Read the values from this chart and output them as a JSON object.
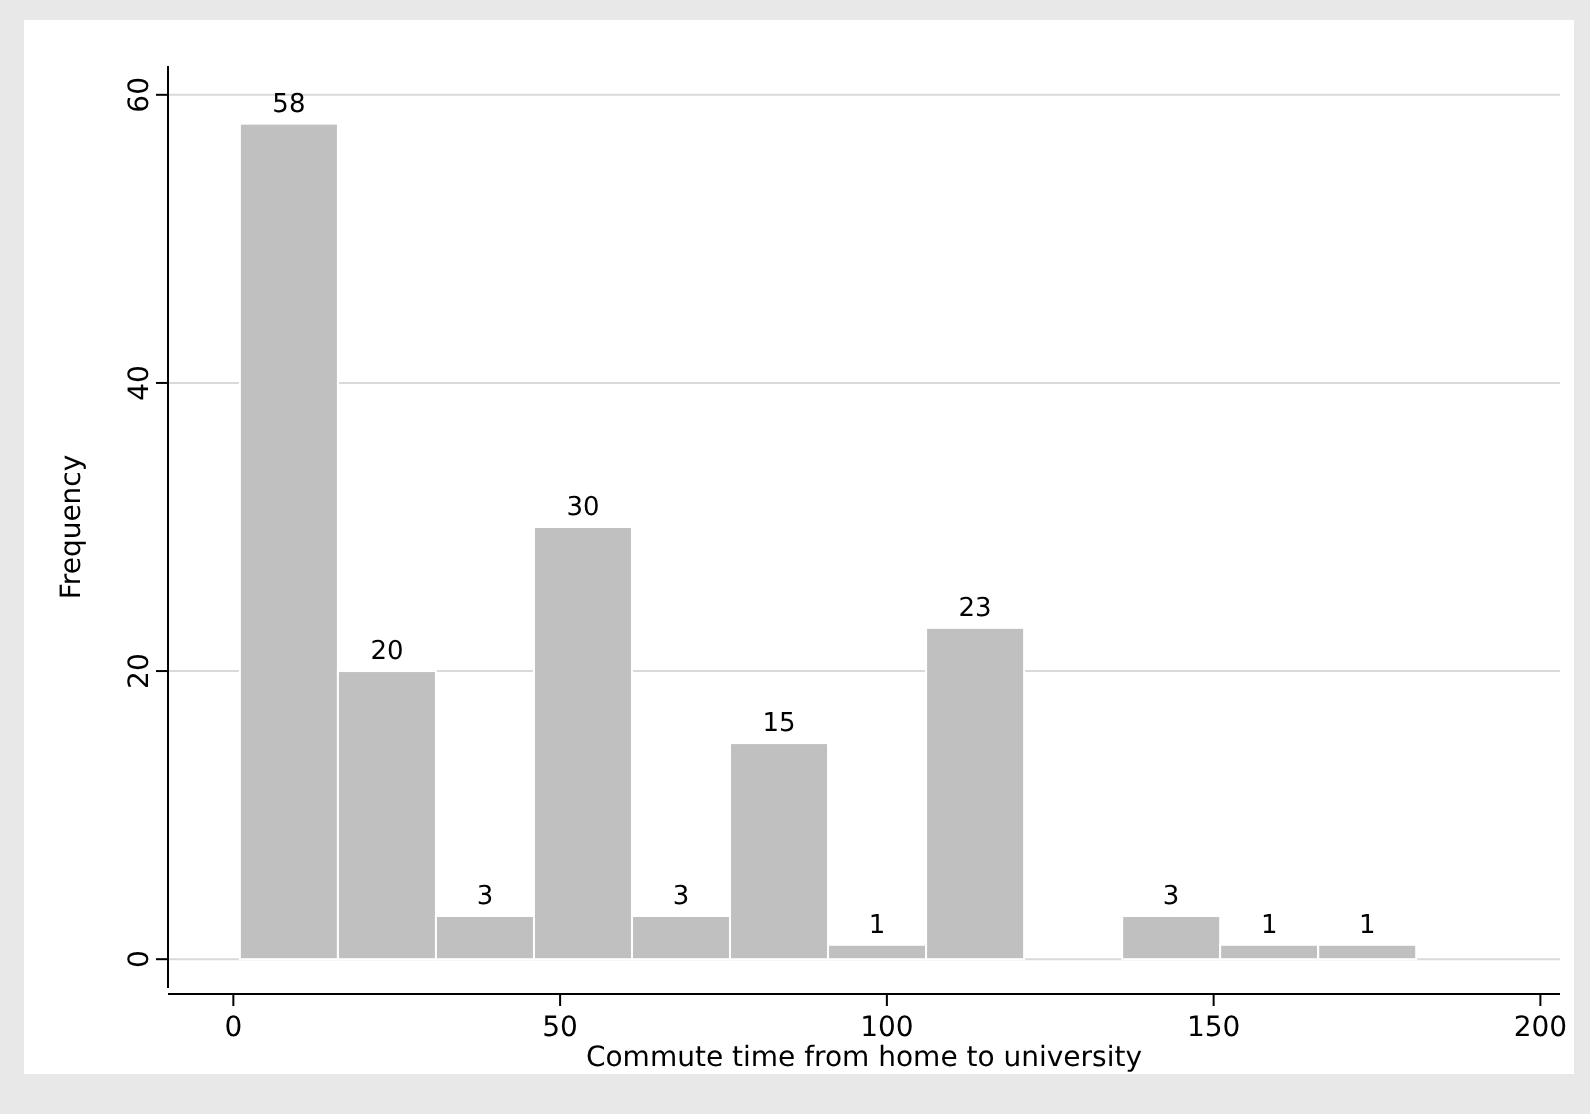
{
  "chart_data": {
    "type": "histogram",
    "xlabel": "Commute time from home to university",
    "ylabel": "Frequency",
    "bins": [
      1,
      16,
      31,
      46,
      61,
      76,
      91,
      106,
      121,
      136,
      151,
      166,
      181
    ],
    "values": [
      58,
      20,
      3,
      30,
      3,
      15,
      1,
      23,
      0,
      3,
      1,
      1
    ],
    "color": "#c0c0c0",
    "value_labels": [
      "58",
      "20",
      "3",
      "30",
      "3",
      "15",
      "1",
      "23",
      null,
      "3",
      "1",
      "1"
    ],
    "grid": "y",
    "xlim": [
      -10,
      203
    ],
    "xticks": [
      0,
      50,
      100,
      150,
      200
    ],
    "ylim": [
      -2,
      62
    ],
    "yticks": [
      0,
      20,
      40,
      60
    ]
  }
}
